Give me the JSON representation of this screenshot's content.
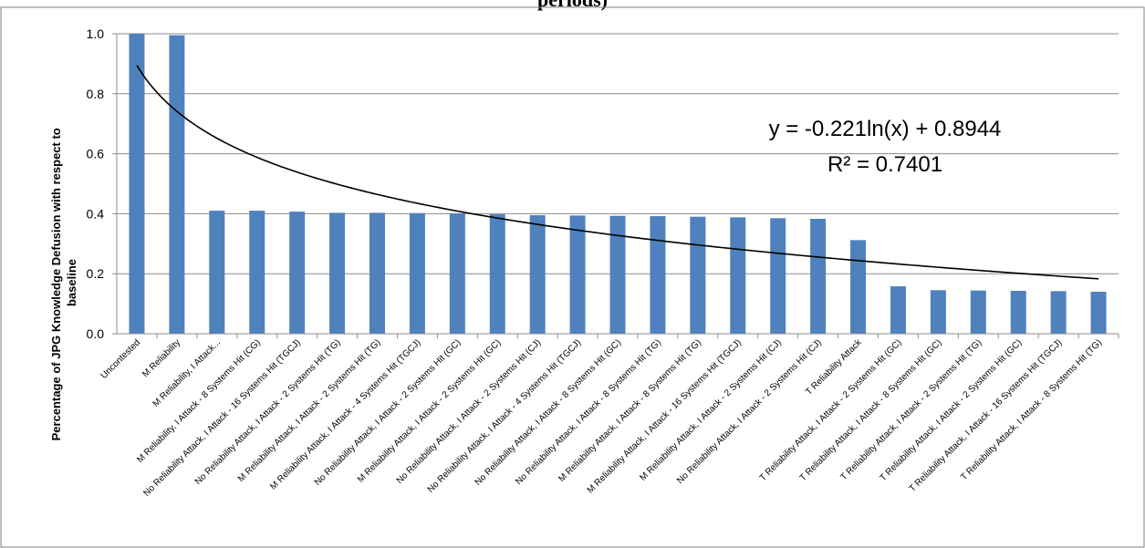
{
  "chart_data": {
    "type": "bar",
    "title": "periods)",
    "ylabel": "Percentage of JPG Knowledge Defusion with respect to baseline",
    "xlabel": "",
    "ylim": [
      0,
      1.0
    ],
    "yticks": [
      "0.0",
      "0.2",
      "0.4",
      "0.6",
      "0.8",
      "1.0"
    ],
    "grid": true,
    "categories": [
      "Uncontested",
      "M Reliability",
      "M Reliability, I Attack...",
      "M Reliability, I Attack - 8 Systems Hit (CG)",
      "No Reliability Attack,  I Attack - 16 Systems Hit (TGCJ)",
      "No Reliability Attack,  I Attack - 2 Systems Hit (TG)",
      "M Reliability Attack,  I Attack - 2 Systems Hit (TG)",
      "M Reliability Attack,  I Attack - 4 Systems Hit (TGCJ)",
      "No Reliability Attack,  I Attack - 2 Systems Hit (GC)",
      "M Reliability Attack,  I Attack - 2 Systems Hit (GC)",
      "No Reliability Attack,  I Attack - 2 Systems Hit (CJ)",
      "No Reliability Attack,  I Attack - 4 Systems Hit (TGCJ)",
      "No Reliability Attack,  I Attack - 8 Systems Hit (GC)",
      "No Reliability Attack,  I Attack - 8 Systems Hit (TG)",
      "M Reliability Attack,  I Attack - 8 Systems Hit (TG)",
      "M Reliability Attack,  I Attack - 16 Systems Hit (TGCJ)",
      "M Reliability Attack,  I Attack - 2 Systems Hit (CJ)",
      "No Reliability Attack,  I Attack - 2 Systems Hit (CJ)",
      "T Reliability Attack",
      "T Reliability Attack, I Attack - 2 Systems Hit (GC)",
      "T Reliability Attack, I Attack - 8 Systems Hit (GC)",
      "T Reliability Attack, I Attack - 2 Systems Hit (TG)",
      "T Reliability Attack, I Attack - 2 Systems Hit (GC)",
      "T Reliability Attack, I Attack - 16 Systems Hit (TGCJ)",
      "T Reliability Attack, I Attack - 8 Systems Hit (TG)"
    ],
    "values": [
      1.0,
      0.995,
      0.41,
      0.41,
      0.407,
      0.403,
      0.403,
      0.402,
      0.401,
      0.398,
      0.395,
      0.394,
      0.393,
      0.392,
      0.39,
      0.388,
      0.385,
      0.383,
      0.312,
      0.158,
      0.145,
      0.144,
      0.143,
      0.142,
      0.14
    ],
    "bar_color": "#4f81bd",
    "trendline": {
      "type": "logarithmic",
      "a": -0.221,
      "b": 0.8944,
      "equation": "y = -0.221ln(x) + 0.8944",
      "r_squared": "R² = 0.7401"
    }
  }
}
